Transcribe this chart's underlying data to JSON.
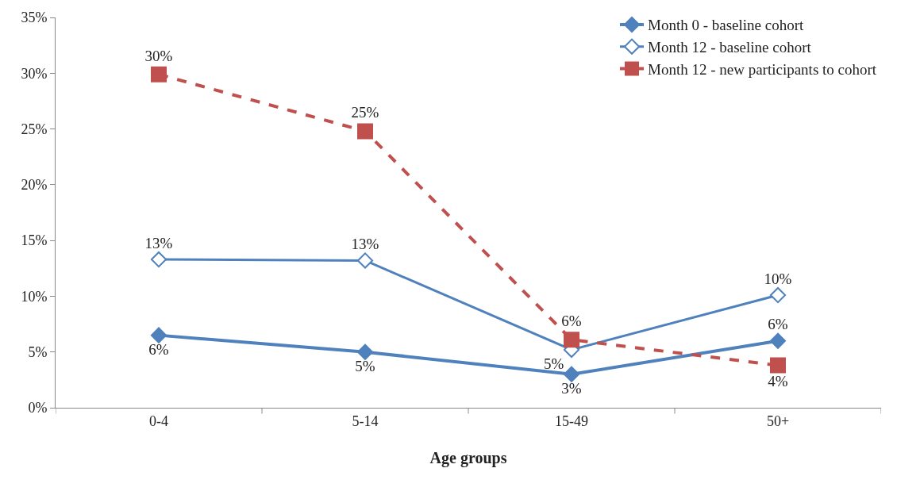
{
  "chart_data": {
    "type": "line",
    "xlabel": "Age groups",
    "categories": [
      "0-4",
      "5-14",
      "15-49",
      "50+"
    ],
    "series": [
      {
        "name": "Month 0 - baseline cohort",
        "color": "#4f81bd",
        "values": [
          6.5,
          5.0,
          3.0,
          6.0
        ],
        "value_labels": [
          "6%",
          "5%",
          "3%",
          "6%"
        ],
        "marker": "diamond",
        "line_style": "solid"
      },
      {
        "name": "Month 12 - baseline cohort",
        "color": "#4f81bd",
        "values": [
          13.3,
          13.2,
          5.2,
          10.1
        ],
        "value_labels": [
          "13%",
          "13%",
          "5%",
          "10%"
        ],
        "marker": "diamond-open",
        "line_style": "solid"
      },
      {
        "name": "Month 12 - new participants to cohort",
        "color": "#c0504d",
        "values": [
          29.9,
          24.8,
          6.1,
          3.8
        ],
        "value_labels": [
          "30%",
          "25%",
          "6%",
          "4%"
        ],
        "marker": "square",
        "line_style": "dashed"
      }
    ],
    "ylim": [
      0,
      35
    ],
    "yticks": [
      {
        "value": 0,
        "label": "0%"
      },
      {
        "value": 5,
        "label": "5%"
      },
      {
        "value": 10,
        "label": "10%"
      },
      {
        "value": 15,
        "label": "15%"
      },
      {
        "value": 20,
        "label": "20%"
      },
      {
        "value": 25,
        "label": "25%"
      },
      {
        "value": 30,
        "label": "30%"
      },
      {
        "value": 35,
        "label": "35%"
      }
    ],
    "legend": "top right"
  }
}
